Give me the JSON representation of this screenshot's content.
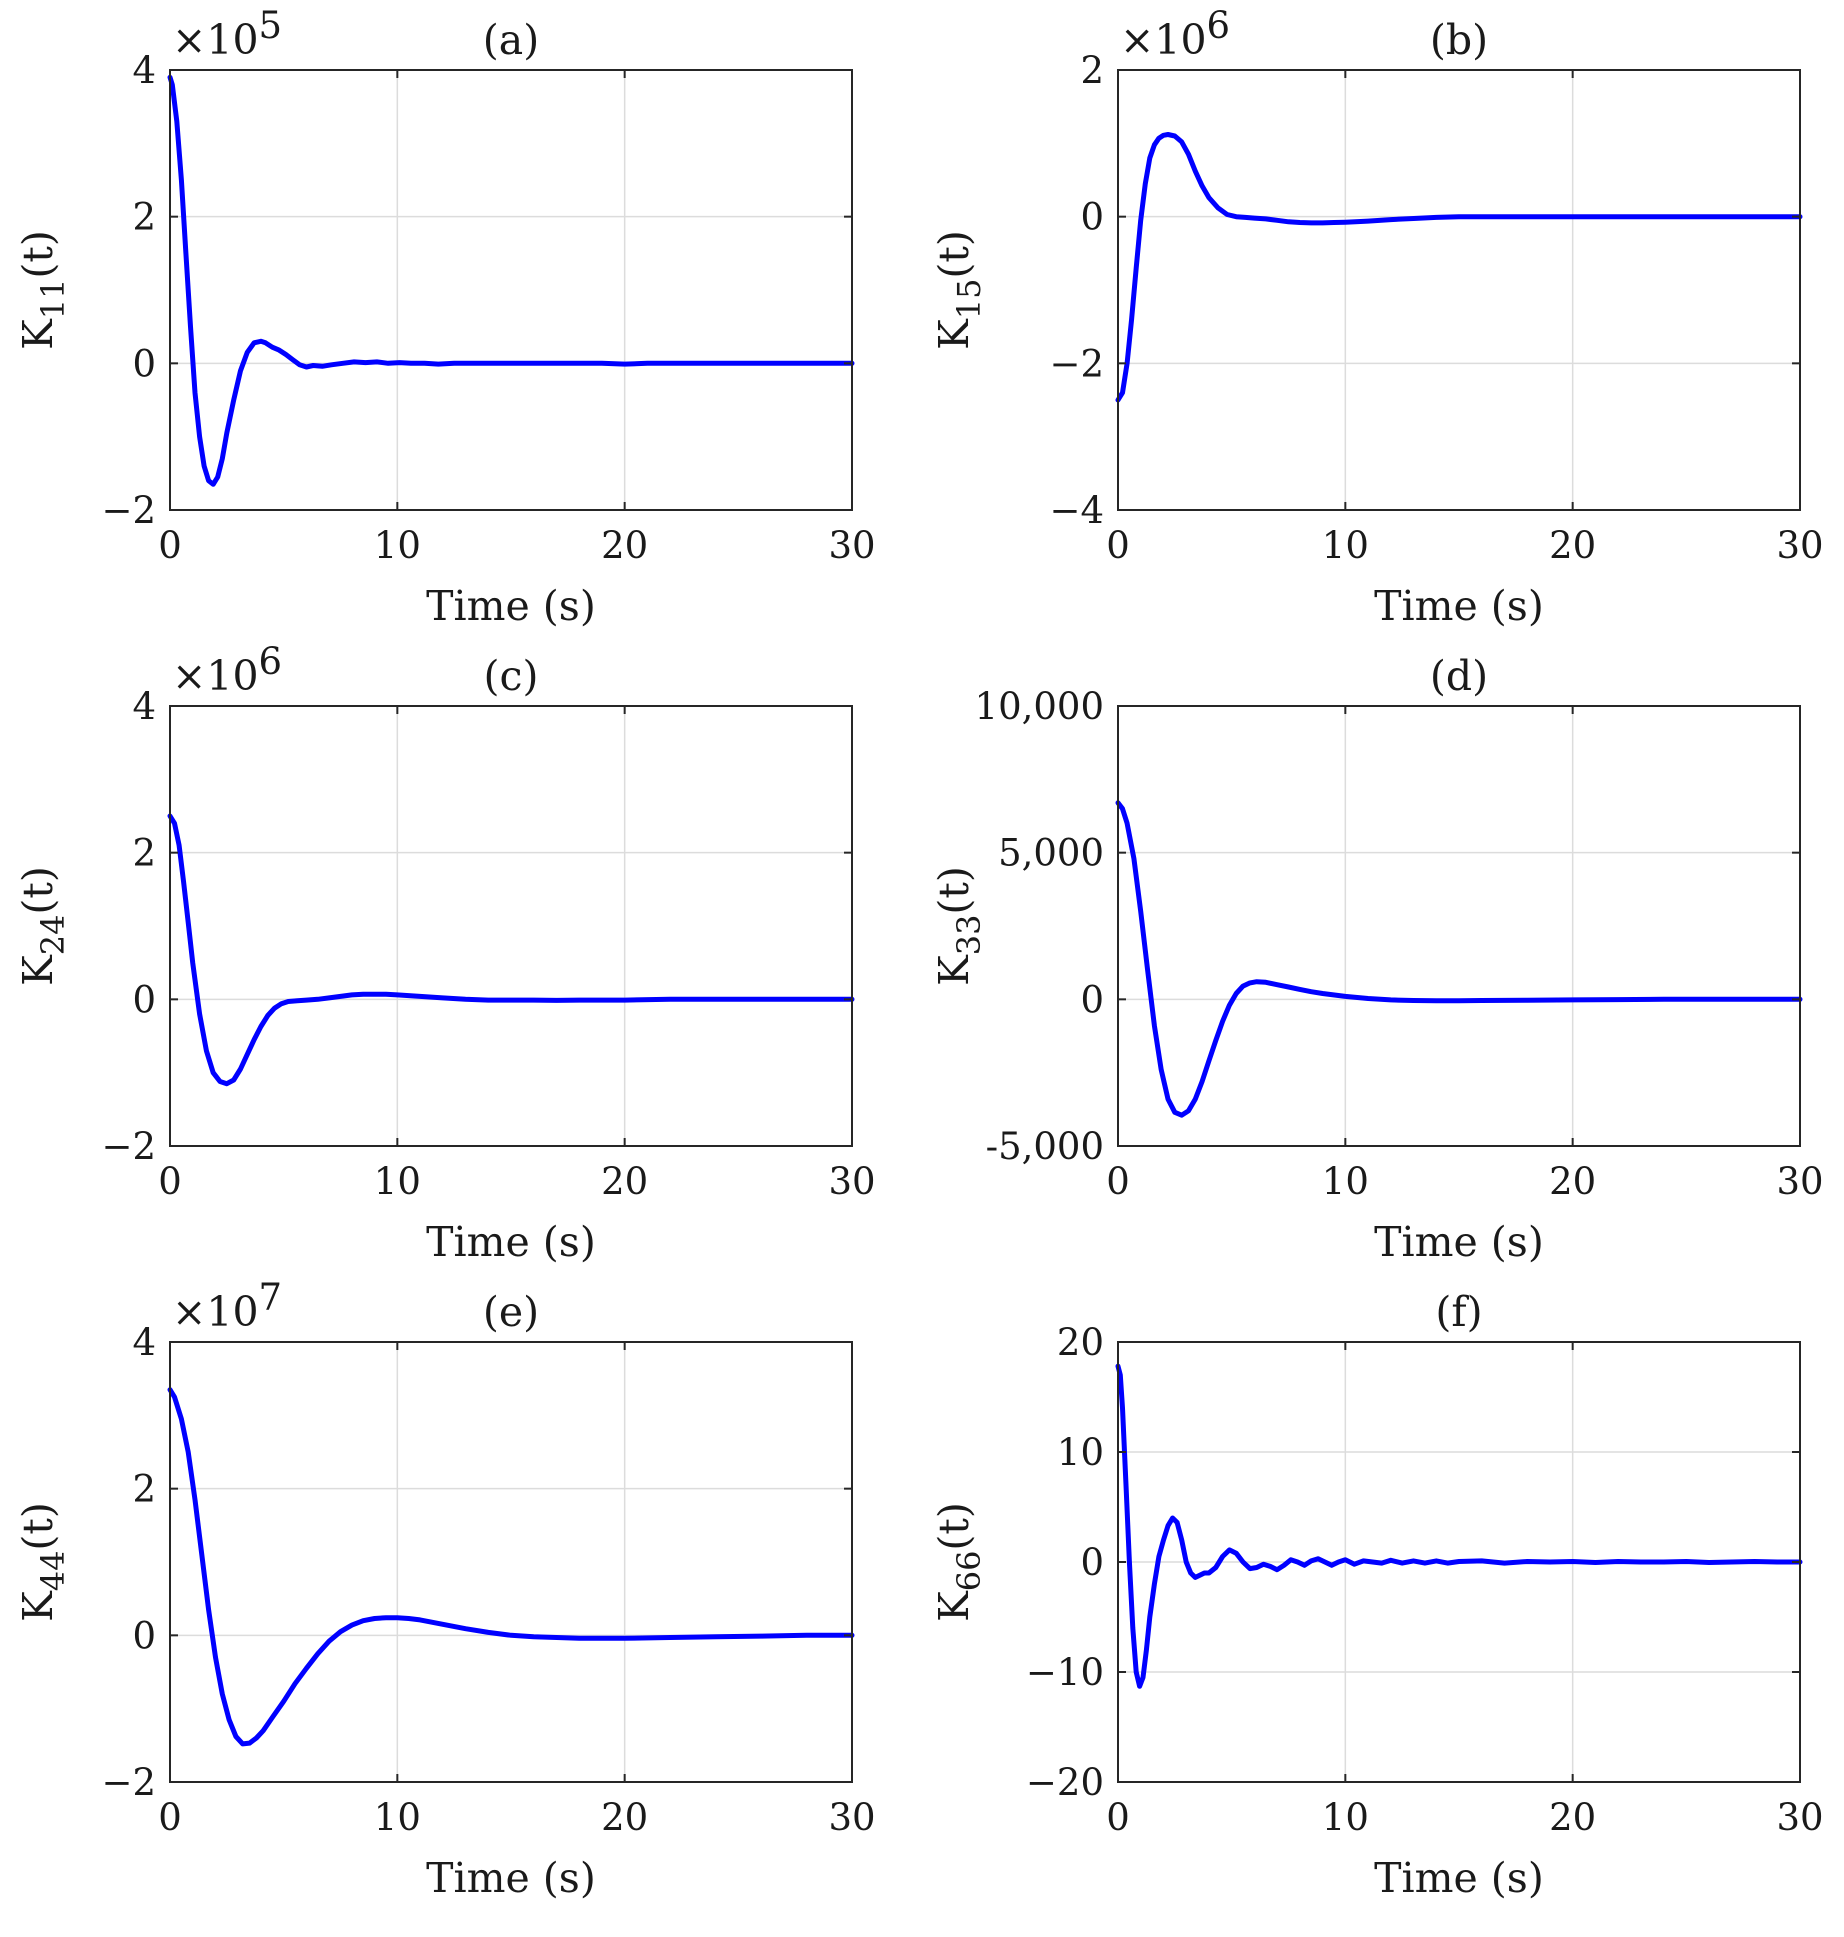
{
  "figure": {
    "background": "#ffffff",
    "line_color": "#0000ff",
    "grid": true
  },
  "chart_data": [
    {
      "type": "line",
      "title": "(a)",
      "xlabel": "Time (s)",
      "ylabel_base": "K",
      "ylabel_sub": "11",
      "ylabel_suffix": "(t)",
      "multiplier_base": "×10",
      "multiplier_exp": "5",
      "xlim": [
        0,
        30
      ],
      "ylim": [
        -2,
        4
      ],
      "xticks": [
        0,
        10,
        20,
        30
      ],
      "yticks": [
        -2,
        0,
        2,
        4
      ],
      "xtick_labels": [
        "0",
        "10",
        "20",
        "30"
      ],
      "ytick_labels": [
        "−2",
        "0",
        "2",
        "4"
      ],
      "series": [
        {
          "x": [
            0,
            0.1,
            0.3,
            0.5,
            0.7,
            0.9,
            1.1,
            1.3,
            1.5,
            1.7,
            1.9,
            2.1,
            2.3,
            2.5,
            2.8,
            3.1,
            3.4,
            3.7,
            4.0,
            4.2,
            4.5,
            4.8,
            5.1,
            5.4,
            5.7,
            6.0,
            6.3,
            6.7,
            7.1,
            7.6,
            8.1,
            8.6,
            9.1,
            9.6,
            10.1,
            10.6,
            11.2,
            11.8,
            12.5,
            13.2,
            14.0,
            15.0,
            16.0,
            17.0,
            18.0,
            19.0,
            20.0,
            21.0,
            22.0,
            23.0,
            24.0,
            25.0,
            26.0,
            27.0,
            28.0,
            29.0,
            30.0
          ],
          "y": [
            3.9,
            3.8,
            3.3,
            2.5,
            1.5,
            0.5,
            -0.4,
            -1.0,
            -1.4,
            -1.6,
            -1.65,
            -1.55,
            -1.3,
            -0.95,
            -0.5,
            -0.1,
            0.15,
            0.28,
            0.3,
            0.28,
            0.22,
            0.18,
            0.12,
            0.05,
            -0.02,
            -0.05,
            -0.03,
            -0.04,
            -0.02,
            0.0,
            0.02,
            0.01,
            0.02,
            0.0,
            0.01,
            0.0,
            0.0,
            -0.01,
            0.0,
            0.0,
            0.0,
            0.0,
            0.0,
            0.0,
            0.0,
            0.0,
            -0.01,
            0.0,
            0.0,
            0.0,
            0.0,
            0.0,
            0.0,
            0.0,
            0.0,
            0.0,
            0.0
          ]
        }
      ]
    },
    {
      "type": "line",
      "title": "(b)",
      "xlabel": "Time (s)",
      "ylabel_base": "K",
      "ylabel_sub": "15",
      "ylabel_suffix": "(t)",
      "multiplier_base": "×10",
      "multiplier_exp": "6",
      "xlim": [
        0,
        30
      ],
      "ylim": [
        -4,
        2
      ],
      "xticks": [
        0,
        10,
        20,
        30
      ],
      "yticks": [
        -4,
        -2,
        0,
        2
      ],
      "xtick_labels": [
        "0",
        "10",
        "20",
        "30"
      ],
      "ytick_labels": [
        "−4",
        "−2",
        "0",
        "2"
      ],
      "series": [
        {
          "x": [
            0,
            0.2,
            0.4,
            0.6,
            0.8,
            1.0,
            1.2,
            1.4,
            1.6,
            1.8,
            2.0,
            2.2,
            2.5,
            2.8,
            3.1,
            3.4,
            3.7,
            4.0,
            4.4,
            4.8,
            5.2,
            5.6,
            6.0,
            6.5,
            7.0,
            7.5,
            8.0,
            8.5,
            9.0,
            9.5,
            10.0,
            11.0,
            12.0,
            13.0,
            14.0,
            15.0,
            16.0,
            18.0,
            20.0,
            22.0,
            24.0,
            26.0,
            28.0,
            30.0
          ],
          "y": [
            -2.5,
            -2.4,
            -2.0,
            -1.4,
            -0.7,
            -0.05,
            0.45,
            0.8,
            0.98,
            1.07,
            1.11,
            1.12,
            1.1,
            1.02,
            0.85,
            0.62,
            0.42,
            0.26,
            0.12,
            0.03,
            0.0,
            -0.01,
            -0.02,
            -0.03,
            -0.05,
            -0.07,
            -0.08,
            -0.085,
            -0.085,
            -0.08,
            -0.075,
            -0.06,
            -0.04,
            -0.025,
            -0.01,
            0.0,
            0.0,
            0.0,
            0.0,
            0.0,
            0.0,
            0.0,
            0.0,
            0.0
          ]
        }
      ]
    },
    {
      "type": "line",
      "title": "(c)",
      "xlabel": "Time (s)",
      "ylabel_base": "K",
      "ylabel_sub": "24",
      "ylabel_suffix": "(t)",
      "multiplier_base": "×10",
      "multiplier_exp": "6",
      "xlim": [
        0,
        30
      ],
      "ylim": [
        -2,
        4
      ],
      "xticks": [
        0,
        10,
        20,
        30
      ],
      "yticks": [
        -2,
        0,
        2,
        4
      ],
      "xtick_labels": [
        "0",
        "10",
        "20",
        "30"
      ],
      "ytick_labels": [
        "−2",
        "0",
        "2",
        "4"
      ],
      "series": [
        {
          "x": [
            0,
            0.2,
            0.4,
            0.6,
            0.8,
            1.0,
            1.3,
            1.6,
            1.9,
            2.2,
            2.5,
            2.8,
            3.1,
            3.4,
            3.7,
            4.0,
            4.3,
            4.6,
            4.9,
            5.2,
            5.6,
            6.0,
            6.5,
            7.0,
            7.5,
            8.0,
            8.5,
            9.0,
            9.5,
            10.0,
            11.0,
            12.0,
            13.0,
            14.0,
            15.0,
            16.0,
            17.0,
            18.0,
            20.0,
            22.0,
            24.0,
            26.0,
            28.0,
            30.0
          ],
          "y": [
            2.5,
            2.4,
            2.1,
            1.6,
            1.05,
            0.5,
            -0.2,
            -0.7,
            -1.0,
            -1.12,
            -1.15,
            -1.1,
            -0.95,
            -0.75,
            -0.55,
            -0.37,
            -0.22,
            -0.12,
            -0.06,
            -0.03,
            -0.02,
            -0.01,
            0.0,
            0.02,
            0.04,
            0.06,
            0.07,
            0.07,
            0.07,
            0.06,
            0.04,
            0.02,
            0.0,
            -0.01,
            -0.01,
            -0.01,
            -0.015,
            -0.01,
            -0.01,
            0.0,
            0.0,
            0.0,
            0.0,
            0.0
          ]
        }
      ]
    },
    {
      "type": "line",
      "title": "(d)",
      "xlabel": "Time (s)",
      "ylabel_base": "K",
      "ylabel_sub": "33",
      "ylabel_suffix": "(t)",
      "multiplier_base": "",
      "multiplier_exp": "",
      "xlim": [
        0,
        30
      ],
      "ylim": [
        -5000,
        10000
      ],
      "xticks": [
        0,
        10,
        20,
        30
      ],
      "yticks": [
        -5000,
        0,
        5000,
        10000
      ],
      "xtick_labels": [
        "0",
        "10",
        "20",
        "30"
      ],
      "ytick_labels": [
        "-5,000",
        "0",
        "5,000",
        "10,000"
      ],
      "series": [
        {
          "x": [
            0,
            0.2,
            0.4,
            0.7,
            1.0,
            1.3,
            1.6,
            1.9,
            2.2,
            2.5,
            2.8,
            3.1,
            3.4,
            3.7,
            4.0,
            4.3,
            4.6,
            4.9,
            5.2,
            5.5,
            5.8,
            6.1,
            6.5,
            7.0,
            7.5,
            8.0,
            8.5,
            9.0,
            10.0,
            11.0,
            12.0,
            13.0,
            14.0,
            15.0,
            16.0,
            18.0,
            20.0,
            22.0,
            24.0,
            26.0,
            28.0,
            30.0
          ],
          "y": [
            6700,
            6500,
            6000,
            4800,
            3000,
            1000,
            -900,
            -2400,
            -3400,
            -3850,
            -3950,
            -3800,
            -3400,
            -2800,
            -2100,
            -1400,
            -750,
            -200,
            200,
            450,
            560,
            600,
            580,
            500,
            420,
            340,
            260,
            200,
            100,
            30,
            -20,
            -40,
            -50,
            -50,
            -40,
            -30,
            -20,
            -10,
            0,
            0,
            0,
            0
          ]
        }
      ]
    },
    {
      "type": "line",
      "title": "(e)",
      "xlabel": "Time (s)",
      "ylabel_base": "K",
      "ylabel_sub": "44",
      "ylabel_suffix": "(t)",
      "multiplier_base": "×10",
      "multiplier_exp": "7",
      "xlim": [
        0,
        30
      ],
      "ylim": [
        -2,
        4
      ],
      "xticks": [
        0,
        10,
        20,
        30
      ],
      "yticks": [
        -2,
        0,
        2,
        4
      ],
      "xtick_labels": [
        "0",
        "10",
        "20",
        "30"
      ],
      "ytick_labels": [
        "−2",
        "0",
        "2",
        "4"
      ],
      "series": [
        {
          "x": [
            0,
            0.2,
            0.5,
            0.8,
            1.1,
            1.4,
            1.7,
            2.0,
            2.3,
            2.6,
            2.9,
            3.2,
            3.5,
            3.8,
            4.1,
            4.5,
            5.0,
            5.5,
            6.0,
            6.5,
            7.0,
            7.5,
            8.0,
            8.5,
            9.0,
            9.5,
            10.0,
            10.5,
            11.0,
            12.0,
            13.0,
            14.0,
            15.0,
            16.0,
            17.0,
            18.0,
            19.0,
            20.0,
            22.0,
            24.0,
            26.0,
            28.0,
            30.0
          ],
          "y": [
            3.35,
            3.25,
            2.95,
            2.5,
            1.85,
            1.1,
            0.35,
            -0.3,
            -0.8,
            -1.15,
            -1.38,
            -1.48,
            -1.47,
            -1.4,
            -1.3,
            -1.12,
            -0.9,
            -0.66,
            -0.45,
            -0.25,
            -0.08,
            0.05,
            0.14,
            0.2,
            0.23,
            0.24,
            0.24,
            0.23,
            0.21,
            0.15,
            0.09,
            0.04,
            0.0,
            -0.02,
            -0.03,
            -0.04,
            -0.04,
            -0.04,
            -0.03,
            -0.02,
            -0.01,
            0.0,
            0.0
          ]
        }
      ]
    },
    {
      "type": "line",
      "title": "(f)",
      "xlabel": "Time (s)",
      "ylabel_base": "K",
      "ylabel_sub": "66",
      "ylabel_suffix": "(t)",
      "multiplier_base": "",
      "multiplier_exp": "",
      "xlim": [
        0,
        30
      ],
      "ylim": [
        -20,
        20
      ],
      "xticks": [
        0,
        10,
        20,
        30
      ],
      "yticks": [
        -20,
        -10,
        0,
        10,
        20
      ],
      "xtick_labels": [
        "0",
        "10",
        "20",
        "30"
      ],
      "ytick_labels": [
        "−20",
        "−10",
        "0",
        "10",
        "20"
      ],
      "series": [
        {
          "x": [
            0,
            0.1,
            0.2,
            0.35,
            0.5,
            0.65,
            0.8,
            0.95,
            1.1,
            1.25,
            1.4,
            1.6,
            1.8,
            2.0,
            2.2,
            2.4,
            2.6,
            2.8,
            3.0,
            3.2,
            3.4,
            3.6,
            3.8,
            4.0,
            4.3,
            4.6,
            4.9,
            5.2,
            5.5,
            5.8,
            6.1,
            6.4,
            6.7,
            7.0,
            7.3,
            7.6,
            7.9,
            8.2,
            8.5,
            8.8,
            9.1,
            9.4,
            9.7,
            10.0,
            10.4,
            10.8,
            11.2,
            11.6,
            12.0,
            12.5,
            13.0,
            13.5,
            14.0,
            14.5,
            15.0,
            16.0,
            17.0,
            18.0,
            19.0,
            20.0,
            21.0,
            22.0,
            23.0,
            24.0,
            25.0,
            26.0,
            27.0,
            28.0,
            29.0,
            30.0
          ],
          "y": [
            17.8,
            17.0,
            14.0,
            7.0,
            0.0,
            -6.0,
            -10.0,
            -11.3,
            -10.5,
            -8.0,
            -5.0,
            -2.0,
            0.5,
            2.0,
            3.3,
            4.0,
            3.6,
            2.0,
            0.0,
            -1.0,
            -1.4,
            -1.2,
            -1.0,
            -1.0,
            -0.5,
            0.5,
            1.1,
            0.8,
            0.0,
            -0.6,
            -0.5,
            -0.2,
            -0.4,
            -0.7,
            -0.3,
            0.2,
            0.0,
            -0.3,
            0.1,
            0.3,
            0.0,
            -0.3,
            0.0,
            0.2,
            -0.2,
            0.1,
            0.0,
            -0.1,
            0.15,
            -0.1,
            0.1,
            -0.1,
            0.1,
            -0.1,
            0.05,
            0.1,
            -0.1,
            0.05,
            0.0,
            0.05,
            -0.05,
            0.05,
            0.0,
            0.0,
            0.05,
            -0.05,
            0.0,
            0.05,
            0.0,
            0.0
          ]
        }
      ]
    }
  ]
}
